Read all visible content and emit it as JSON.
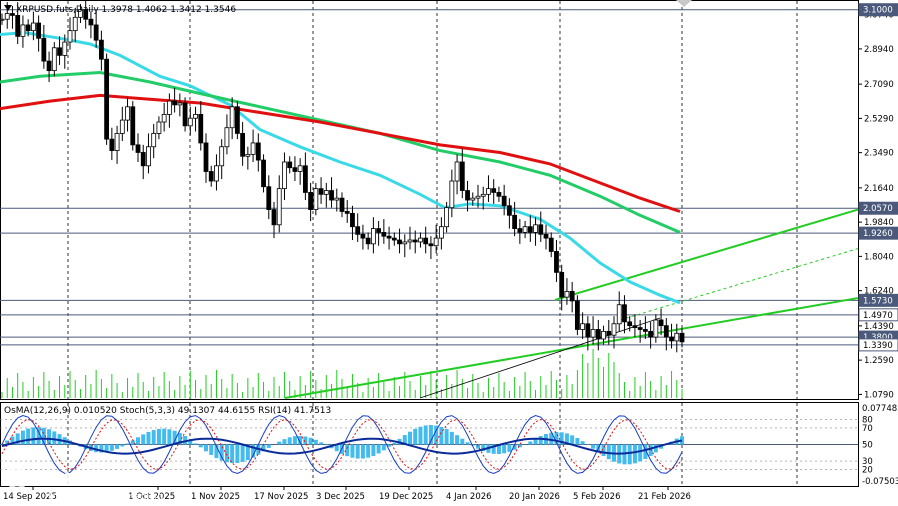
{
  "chart_data": {
    "type": "candlestick",
    "symbol_line": "XRPUSD.futs,Daily  1.3978 1.4062 1.3412 1.3546",
    "ohlc": {
      "open": 1.3978,
      "high": 1.4062,
      "low": 1.3412,
      "close": 1.3546
    },
    "price_axis": {
      "range": [
        1.06,
        3.13
      ],
      "ticks": [
        "3.0740",
        "2.8940",
        "2.7090",
        "2.5290",
        "2.3490",
        "2.1640",
        "1.9840",
        "1.8040",
        "1.6240",
        "1.4390",
        "1.2590",
        "1.0790"
      ]
    },
    "level_labels": [
      {
        "label": "3.1000",
        "value": 3.1,
        "color": "#4b5a7a"
      },
      {
        "label": "2.0570",
        "value": 2.057,
        "color": "#4b5a7a"
      },
      {
        "label": "1.9260",
        "value": 1.926,
        "color": "#4b5a7a"
      },
      {
        "label": "1.5730",
        "value": 1.573,
        "color": "#4b5a7a"
      },
      {
        "label": "1.4970",
        "value": 1.497,
        "color": "#ffffff"
      },
      {
        "label": "1.3800",
        "value": 1.38,
        "color": "#4b5a7a"
      },
      {
        "label": "1.3390",
        "value": 1.339,
        "color": "#ffffff"
      }
    ],
    "date_labels": [
      "14 Sep 2025",
      "1 Oct 2025",
      "1 Nov 2025",
      "17 Nov 2025",
      "3 Dec 2025",
      "19 Dec 2025",
      "4 Jan 2026",
      "20 Jan 2026",
      "5 Feb 2026",
      "21 Feb 2026"
    ],
    "indicator_text": "OsMA(12,26,9) 0.010520  Stoch(5,3,3) 49.1307 44.6155  RSI(14) 41.7513",
    "indicator_axis": {
      "max_label": "0.077485",
      "min_label": "-0.07503",
      "levels": [
        "80",
        "70",
        "50",
        "30",
        "20"
      ]
    },
    "moving_averages": [
      {
        "color": "#3ad9e8"
      },
      {
        "color": "#22cc66"
      },
      {
        "color": "#e01010"
      }
    ],
    "closes_approx": [
      3.05,
      3.08,
      3.07,
      2.96,
      3.02,
      2.99,
      3.03,
      2.95,
      2.83,
      2.78,
      2.9,
      2.86,
      2.93,
      2.99,
      3.06,
      3.1,
      3.05,
      3.02,
      2.94,
      2.84,
      2.42,
      2.36,
      2.45,
      2.52,
      2.59,
      2.39,
      2.35,
      2.28,
      2.38,
      2.45,
      2.51,
      2.55,
      2.62,
      2.6,
      2.61,
      2.49,
      2.53,
      2.55,
      2.4,
      2.25,
      2.2,
      2.28,
      2.38,
      2.48,
      2.59,
      2.45,
      2.33,
      2.34,
      2.4,
      2.31,
      2.17,
      2.05,
      1.97,
      2.16,
      2.3,
      2.27,
      2.25,
      2.28,
      2.14,
      2.05,
      2.16,
      2.13,
      2.15,
      2.1,
      2.11,
      2.04,
      2.03,
      1.96,
      1.92,
      1.9,
      1.87,
      1.95,
      1.93,
      1.91,
      1.9,
      1.89,
      1.87,
      1.88,
      1.89,
      1.88,
      1.9,
      1.87,
      1.86,
      1.9,
      1.96,
      2.06,
      2.2,
      2.3,
      2.15,
      2.1,
      2.11,
      2.12,
      2.13,
      2.16,
      2.14,
      2.12,
      2.07,
      2.02,
      1.95,
      1.93,
      1.96,
      1.93,
      1.97,
      1.92,
      1.9,
      1.83,
      1.72,
      1.59,
      1.62,
      1.57,
      1.42,
      1.45,
      1.38,
      1.42,
      1.37,
      1.41,
      1.39,
      1.45,
      1.55,
      1.46,
      1.44,
      1.43,
      1.42,
      1.41,
      1.38,
      1.47,
      1.44,
      1.38,
      1.36,
      1.4,
      1.355
    ]
  }
}
